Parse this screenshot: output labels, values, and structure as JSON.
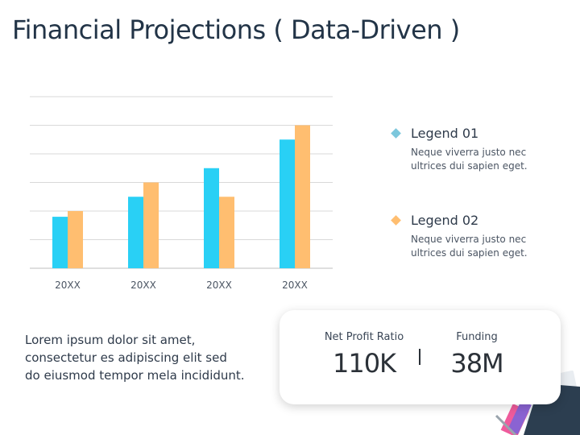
{
  "title": "Financial Projections ( Data-Driven )",
  "chart_data": {
    "type": "bar",
    "categories": [
      "20XX",
      "20XX",
      "20XX",
      "20XX"
    ],
    "series": [
      {
        "name": "Legend 01",
        "color": "#29d0f5",
        "values": [
          1.8,
          2.5,
          3.5,
          4.5
        ]
      },
      {
        "name": "Legend 02",
        "color": "#ffbe70",
        "values": [
          2.0,
          3.0,
          2.5,
          5.0
        ]
      }
    ],
    "ylim": [
      0,
      6
    ],
    "grid": true,
    "title": "",
    "xlabel": "",
    "ylabel": ""
  },
  "legend": [
    {
      "name": "Legend 01",
      "color": "#7cc7dc",
      "desc_line1": "Neque viverra justo nec",
      "desc_line2": "ultrices dui sapien eget."
    },
    {
      "name": "Legend 02",
      "color": "#ffbe70",
      "desc_line1": "Neque viverra justo nec",
      "desc_line2": "ultrices dui sapien eget."
    }
  ],
  "body_text": [
    "Lorem ipsum dolor sit amet,",
    "consectetur es adipiscing elit sed",
    "do eiusmod tempor mela incididunt."
  ],
  "kpis": [
    {
      "label": "Net Profit Ratio",
      "value": "110K"
    },
    {
      "label": "Funding",
      "value": "38M"
    }
  ]
}
